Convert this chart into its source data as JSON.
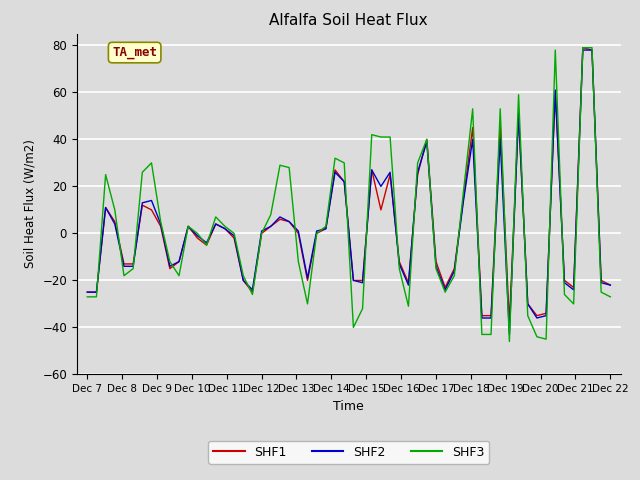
{
  "title": "Alfalfa Soil Heat Flux",
  "ylabel": "Soil Heat Flux (W/m2)",
  "xlabel": "Time",
  "ylim": [
    -60,
    85
  ],
  "yticks": [
    -60,
    -40,
    -20,
    0,
    20,
    40,
    60,
    80
  ],
  "plot_bg_color": "#dcdcdc",
  "fig_bg_color": "#dcdcdc",
  "grid_color": "#ffffff",
  "annotation_text": "TA_met",
  "annotation_bg": "#ffffcc",
  "annotation_border": "#888800",
  "annotation_text_color": "#880000",
  "x_tick_labels": [
    "Dec 7",
    "Dec 8",
    "Dec 9",
    "Dec 10",
    "Dec 11",
    "Dec 12",
    "Dec 13",
    "Dec 14",
    "Dec 15",
    "Dec 16",
    "Dec 17",
    "Dec 18",
    "Dec 19",
    "Dec 20",
    "Dec 21",
    "Dec 22"
  ],
  "shf1_color": "#cc0000",
  "shf2_color": "#0000cc",
  "shf3_color": "#00aa00",
  "legend_entries": [
    "SHF1",
    "SHF2",
    "SHF3"
  ],
  "shf1": [
    -25,
    -25,
    11,
    5,
    -13,
    -13,
    12,
    10,
    3,
    -15,
    -12,
    3,
    -2,
    -5,
    4,
    2,
    -2,
    -20,
    -25,
    0,
    3,
    6,
    5,
    0,
    -20,
    0,
    2,
    27,
    22,
    -20,
    -20,
    27,
    10,
    25,
    -12,
    -21,
    25,
    40,
    -12,
    -23,
    -15,
    15,
    45,
    -35,
    -35,
    46,
    -38,
    50,
    -30,
    -35,
    -34,
    60,
    -20,
    -23,
    79,
    78,
    -20,
    -22
  ],
  "shf2": [
    -25,
    -25,
    11,
    4,
    -14,
    -14,
    13,
    14,
    4,
    -14,
    -12,
    3,
    -1,
    -4,
    4,
    2,
    -1,
    -20,
    -24,
    1,
    3,
    7,
    5,
    1,
    -19,
    1,
    2,
    26,
    22,
    -20,
    -21,
    27,
    20,
    26,
    -13,
    -22,
    26,
    39,
    -14,
    -24,
    -16,
    14,
    40,
    -36,
    -36,
    40,
    -43,
    51,
    -30,
    -36,
    -35,
    61,
    -21,
    -24,
    78,
    78,
    -21,
    -22
  ],
  "shf3": [
    -27,
    -27,
    25,
    10,
    -18,
    -15,
    26,
    30,
    5,
    -12,
    -18,
    3,
    0,
    -5,
    7,
    3,
    0,
    -18,
    -26,
    0,
    8,
    29,
    28,
    -12,
    -30,
    0,
    3,
    32,
    30,
    -40,
    -32,
    42,
    41,
    41,
    -15,
    -31,
    30,
    40,
    -15,
    -25,
    -18,
    18,
    53,
    -43,
    -43,
    53,
    -46,
    59,
    -35,
    -44,
    -45,
    78,
    -26,
    -30,
    79,
    79,
    -25,
    -27
  ]
}
